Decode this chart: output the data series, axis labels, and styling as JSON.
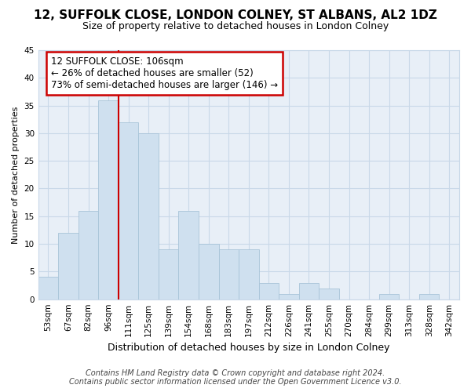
{
  "title": "12, SUFFOLK CLOSE, LONDON COLNEY, ST ALBANS, AL2 1DZ",
  "subtitle": "Size of property relative to detached houses in London Colney",
  "xlabel": "Distribution of detached houses by size in London Colney",
  "ylabel": "Number of detached properties",
  "bar_labels": [
    "53sqm",
    "67sqm",
    "82sqm",
    "96sqm",
    "111sqm",
    "125sqm",
    "139sqm",
    "154sqm",
    "168sqm",
    "183sqm",
    "197sqm",
    "212sqm",
    "226sqm",
    "241sqm",
    "255sqm",
    "270sqm",
    "284sqm",
    "299sqm",
    "313sqm",
    "328sqm",
    "342sqm"
  ],
  "bar_values": [
    4,
    12,
    16,
    36,
    32,
    30,
    9,
    16,
    10,
    9,
    9,
    3,
    1,
    3,
    2,
    0,
    0,
    1,
    0,
    1,
    0
  ],
  "bar_color": "#cfe0ef",
  "bar_edgecolor": "#a8c4d8",
  "vline_x_index": 4,
  "annotation_title": "12 SUFFOLK CLOSE: 106sqm",
  "annotation_line1": "← 26% of detached houses are smaller (52)",
  "annotation_line2": "73% of semi-detached houses are larger (146) →",
  "annotation_box_facecolor": "#ffffff",
  "annotation_box_edgecolor": "#cc0000",
  "vline_color": "#cc0000",
  "ylim": [
    0,
    45
  ],
  "yticks": [
    0,
    5,
    10,
    15,
    20,
    25,
    30,
    35,
    40,
    45
  ],
  "footer_line1": "Contains HM Land Registry data © Crown copyright and database right 2024.",
  "footer_line2": "Contains public sector information licensed under the Open Government Licence v3.0.",
  "bg_color": "#ffffff",
  "plot_bg_color": "#e8eff7",
  "grid_color": "#c8d8e8",
  "title_fontsize": 11,
  "subtitle_fontsize": 9,
  "xlabel_fontsize": 9,
  "ylabel_fontsize": 8,
  "tick_fontsize": 7.5,
  "annotation_fontsize": 8.5,
  "footer_fontsize": 7
}
